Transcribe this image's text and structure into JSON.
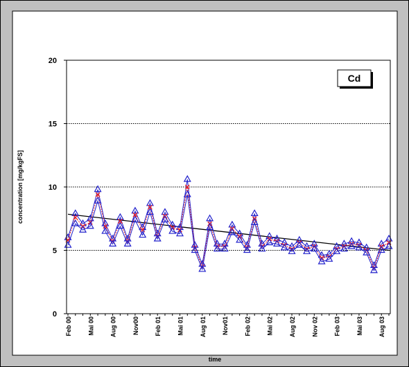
{
  "chart_data": {
    "type": "line",
    "title": "Cd",
    "xlabel": "time",
    "ylabel": "concentration [mg/kgFS]",
    "ylim": [
      0,
      20
    ],
    "yticks": [
      0,
      5,
      10,
      15,
      20
    ],
    "grid": "horizontal dotted at 5, 10, 15, 20",
    "xticks": [
      "Feb 00",
      "Mai 00",
      "Aug 00",
      "Nov00",
      "Feb 01",
      "Mai 01",
      "Aug 01",
      "Nov01",
      "Feb 02",
      "Mai 02",
      "Aug 02",
      "Nov 02",
      "Feb 03",
      "Mai 03",
      "Aug 03"
    ],
    "series": [
      {
        "role": "upper",
        "values": [
          6.0,
          7.9,
          7.1,
          7.5,
          9.8,
          7.1,
          5.9,
          7.6,
          5.9,
          8.1,
          6.8,
          8.7,
          6.3,
          8.0,
          7.0,
          6.8,
          10.6,
          5.4,
          3.9,
          7.5,
          5.5,
          5.5,
          7.0,
          6.3,
          5.4,
          7.9,
          5.5,
          6.1,
          5.9,
          5.6,
          5.3,
          5.8,
          5.3,
          5.5,
          4.6,
          4.7,
          5.3,
          5.5,
          5.7,
          5.6,
          5.2,
          3.8,
          5.5,
          5.9
        ],
        "color": "#2222cc",
        "marker": "triangle"
      },
      {
        "role": "mean",
        "values": [
          5.8,
          7.6,
          6.9,
          7.2,
          9.4,
          6.9,
          5.7,
          7.3,
          5.7,
          7.8,
          6.6,
          8.4,
          6.1,
          7.7,
          6.8,
          6.6,
          10.0,
          5.2,
          3.7,
          7.1,
          5.3,
          5.3,
          6.7,
          6.1,
          5.2,
          7.5,
          5.3,
          5.9,
          5.7,
          5.4,
          5.1,
          5.6,
          5.1,
          5.3,
          4.4,
          4.5,
          5.1,
          5.3,
          5.5,
          5.4,
          5.0,
          3.6,
          5.3,
          5.6
        ],
        "color": "#ee2222",
        "marker": "x"
      },
      {
        "role": "lower",
        "values": [
          5.4,
          7.1,
          6.6,
          6.9,
          8.9,
          6.5,
          5.5,
          6.9,
          5.5,
          7.4,
          6.2,
          8.0,
          5.9,
          7.4,
          6.5,
          6.3,
          9.4,
          5.0,
          3.5,
          6.8,
          5.1,
          5.1,
          6.4,
          5.8,
          5.0,
          7.2,
          5.1,
          5.6,
          5.5,
          5.2,
          4.9,
          5.4,
          4.9,
          5.1,
          4.1,
          4.3,
          4.9,
          5.1,
          5.3,
          5.2,
          4.8,
          3.4,
          5.0,
          5.3
        ],
        "color": "#2222cc",
        "marker": "triangle"
      }
    ],
    "trend": {
      "type": "linear",
      "start": 7.85,
      "end": 5.0,
      "color": "#000000"
    }
  }
}
